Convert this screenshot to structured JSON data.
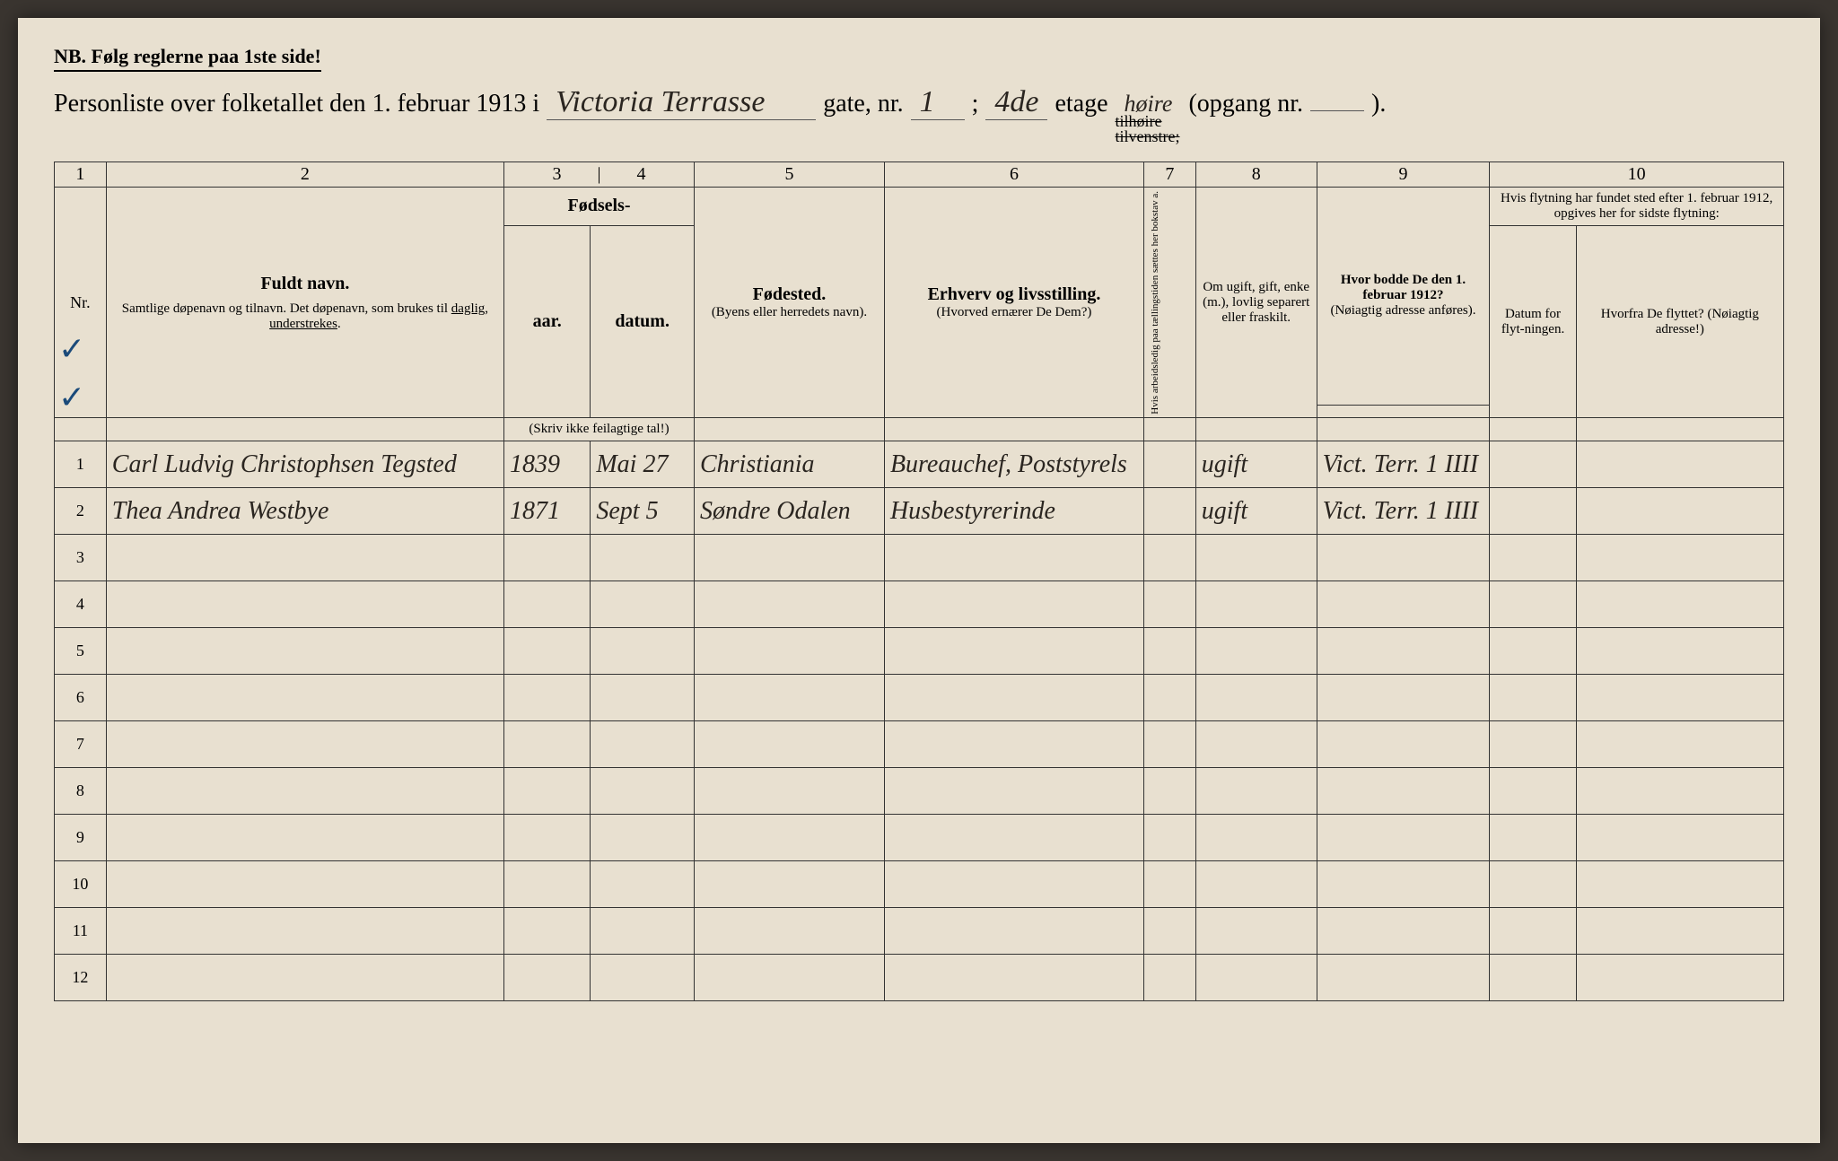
{
  "header": {
    "nb": "NB.  Følg reglerne paa 1ste side!",
    "title_prefix": "Personliste over folketallet den 1. februar 1913 i",
    "street": "Victoria Terrasse",
    "street_suffix": "gate, nr.",
    "nr": "1",
    "sep": ";",
    "etage": "4de",
    "etage_label": "etage",
    "side_struck1": "tilhøire",
    "side_hand": "høire",
    "side_struck2": "tilvenstre;",
    "opgang": "(opgang nr.",
    "opgang_val": "",
    "close": ")."
  },
  "colNums": [
    "1",
    "2",
    "3",
    "4",
    "5",
    "6",
    "7",
    "8",
    "9",
    "10"
  ],
  "headers": {
    "nr": "Nr.",
    "fuldt_navn": "Fuldt navn.",
    "navn_sub": "Samtlige døpenavn og tilnavn. Det døpenavn, som brukes til daglig, understrekes.",
    "fodsels": "Fødsels-",
    "aar": "aar.",
    "datum": "datum.",
    "fodsels_note": "(Skriv ikke feilagtige tal!)",
    "fodested": "Fødested.",
    "fodested_sub": "(Byens eller herredets navn).",
    "erhverv": "Erhverv og livsstilling.",
    "erhverv_sub": "(Hvorved ernærer De Dem?)",
    "col7": "Hvis arbeidsledig paa tællingstiden sættes her bokstav a.",
    "col8": "Om ugift, gift, enke (m.), lovlig separert eller fraskilt.",
    "col9": "Hvor bodde De den 1. februar 1912?",
    "col9_sub": "(Nøiagtig adresse anføres).",
    "col10": "Hvis flytning har fundet sted efter 1. februar 1912, opgives her for sidste flytning:",
    "col10a": "Datum for flyt-ningen.",
    "col10b": "Hvorfra De flyttet? (Nøiagtig adresse!)"
  },
  "rows": [
    {
      "n": "1",
      "navn": "Carl Ludvig Christophsen Tegsted",
      "aar": "1839",
      "datum": "Mai 27",
      "sted": "Christiania",
      "erhverv": "Bureauchef, Poststyrels",
      "c7": "",
      "c8": "ugift",
      "c9": "Vict. Terr. 1 IIII",
      "c10a": "",
      "c10b": ""
    },
    {
      "n": "2",
      "navn": "Thea Andrea Westbye",
      "aar": "1871",
      "datum": "Sept 5",
      "sted": "Søndre Odalen",
      "erhverv": "Husbestyrerinde",
      "c7": "",
      "c8": "ugift",
      "c9": "Vict. Terr. 1 IIII",
      "c10a": "",
      "c10b": ""
    },
    {
      "n": "3",
      "navn": "",
      "aar": "",
      "datum": "",
      "sted": "",
      "erhverv": "",
      "c7": "",
      "c8": "",
      "c9": "",
      "c10a": "",
      "c10b": ""
    },
    {
      "n": "4",
      "navn": "",
      "aar": "",
      "datum": "",
      "sted": "",
      "erhverv": "",
      "c7": "",
      "c8": "",
      "c9": "",
      "c10a": "",
      "c10b": ""
    },
    {
      "n": "5",
      "navn": "",
      "aar": "",
      "datum": "",
      "sted": "",
      "erhverv": "",
      "c7": "",
      "c8": "",
      "c9": "",
      "c10a": "",
      "c10b": ""
    },
    {
      "n": "6",
      "navn": "",
      "aar": "",
      "datum": "",
      "sted": "",
      "erhverv": "",
      "c7": "",
      "c8": "",
      "c9": "",
      "c10a": "",
      "c10b": ""
    },
    {
      "n": "7",
      "navn": "",
      "aar": "",
      "datum": "",
      "sted": "",
      "erhverv": "",
      "c7": "",
      "c8": "",
      "c9": "",
      "c10a": "",
      "c10b": ""
    },
    {
      "n": "8",
      "navn": "",
      "aar": "",
      "datum": "",
      "sted": "",
      "erhverv": "",
      "c7": "",
      "c8": "",
      "c9": "",
      "c10a": "",
      "c10b": ""
    },
    {
      "n": "9",
      "navn": "",
      "aar": "",
      "datum": "",
      "sted": "",
      "erhverv": "",
      "c7": "",
      "c8": "",
      "c9": "",
      "c10a": "",
      "c10b": ""
    },
    {
      "n": "10",
      "navn": "",
      "aar": "",
      "datum": "",
      "sted": "",
      "erhverv": "",
      "c7": "",
      "c8": "",
      "c9": "",
      "c10a": "",
      "c10b": ""
    },
    {
      "n": "11",
      "navn": "",
      "aar": "",
      "datum": "",
      "sted": "",
      "erhverv": "",
      "c7": "",
      "c8": "",
      "c9": "",
      "c10a": "",
      "c10b": ""
    },
    {
      "n": "12",
      "navn": "",
      "aar": "",
      "datum": "",
      "sted": "",
      "erhverv": "",
      "c7": "",
      "c8": "",
      "c9": "",
      "c10a": "",
      "c10b": ""
    }
  ],
  "colWidths": {
    "nr": "3%",
    "navn": "23%",
    "aar": "5%",
    "datum": "6%",
    "sted": "11%",
    "erhverv": "15%",
    "c7": "3%",
    "c8": "7%",
    "c9": "10%",
    "c10a": "5%",
    "c10b": "12%"
  },
  "style": {
    "bg": "#e8e0d0",
    "ink": "#2a2520",
    "blue": "#1a4a7a",
    "line": "#333333"
  }
}
